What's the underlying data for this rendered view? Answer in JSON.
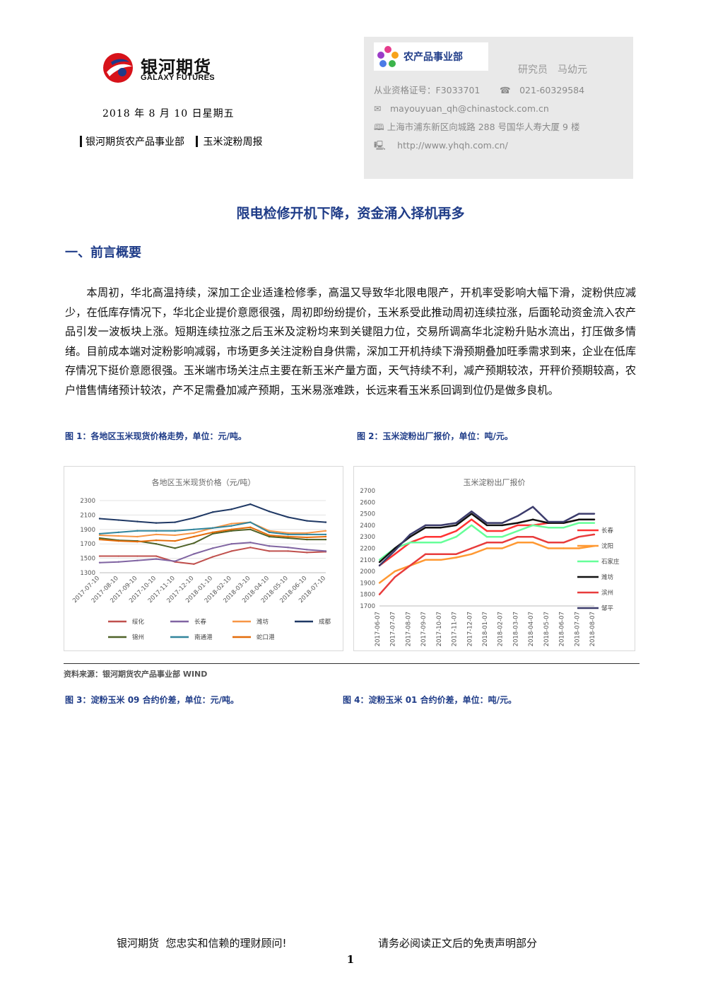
{
  "header": {
    "logo_cn": "银河期货",
    "logo_en": "GALAXY FUTURES",
    "date": "2018 年 8 月 10 日星期五",
    "dept": "银河期货农产品事业部",
    "report": "玉米淀粉周报"
  },
  "infobox": {
    "dept_label": "农产品事业部",
    "analyst": "研究员　马幼元",
    "license": "从业资格证号：F3033701",
    "phone_icon": "☎",
    "phone": "021-60329584",
    "email_icon": "✉",
    "email": "mayouyuan_qh@chinastock.com.cn",
    "address_icon": "🕮",
    "address": "上海市浦东新区向城路 288 号国华人寿大厦 9 楼",
    "web_icon": "🖳",
    "web": "http://www.yhqh.com.cn/"
  },
  "title": "限电检修开机下降，资金涌入择机再多",
  "section_title": "一、前言概要",
  "paragraph": "本周初，华北高温持续，深加工企业适逢检修季，高温又导致华北限电限产，开机率受影响大幅下滑，淀粉供应减少，在低库存情况下，华北企业提价意愿很强，周初即纷纷提价，玉米系受此推动周初连续拉涨，后面轮动资金流入农产品引发一波板块上涨。短期连续拉涨之后玉米及淀粉均来到关键阻力位，交易所调高华北淀粉升贴水流出，打压做多情绪。目前成本端对淀粉影响减弱，市场更多关注淀粉自身供需，深加工开机持续下滑预期叠加旺季需求到来，企业在低库存情况下挺价意愿很强。玉米端市场关注点主要在新玉米产量方面，天气持续不利，减产预期较浓，开秤价预期较高，农户惜售情绪预计较浓，产不足需叠加减产预期，玉米易涨难跌，长远来看玉米系回调到位仍是做多良机。",
  "figures": {
    "fig1_caption": "图 1：各地区玉米现货价格走势，单位：元/吨。",
    "fig2_caption": "图 2：玉米淀粉出厂报价，单位：吨/元。",
    "fig3_caption": "图 3：淀粉玉米 09 合约价差，单位：元/吨。",
    "fig4_caption": "图 4：淀粉玉米 01 合约价差，单位：吨/元。",
    "source": "资料来源：银河期货农产品事业部 WIND"
  },
  "chart_data": [
    {
      "type": "line",
      "title": "各地区玉米现货价格（元/吨）",
      "x": [
        "2017-07-10",
        "2017-08-10",
        "2017-09-10",
        "2017-10-10",
        "2017-11-10",
        "2017-12-10",
        "2018-01-10",
        "2018-02-10",
        "2018-03-10",
        "2018-04-10",
        "2018-05-10",
        "2018-06-10",
        "2018-07-10"
      ],
      "ylim": [
        1300,
        2300
      ],
      "yticks": [
        1300,
        1500,
        1700,
        1900,
        2100,
        2300
      ],
      "legend": "bottom",
      "series": [
        {
          "name": "绥化",
          "color": "#c0504d",
          "values": [
            1530,
            1530,
            1530,
            1530,
            1450,
            1420,
            1520,
            1600,
            1650,
            1600,
            1600,
            1580,
            1590
          ]
        },
        {
          "name": "长春",
          "color": "#8064a2",
          "values": [
            1440,
            1450,
            1470,
            1490,
            1460,
            1560,
            1640,
            1700,
            1720,
            1670,
            1650,
            1620,
            1600
          ]
        },
        {
          "name": "潍坊",
          "color": "#f79646",
          "values": [
            1820,
            1810,
            1800,
            1830,
            1820,
            1850,
            1920,
            1980,
            2000,
            1880,
            1850,
            1850,
            1880
          ]
        },
        {
          "name": "成都",
          "color": "#1f3864",
          "values": [
            2050,
            2030,
            2010,
            1990,
            2000,
            2060,
            2140,
            2180,
            2250,
            2150,
            2070,
            2020,
            2000
          ]
        },
        {
          "name": "锦州",
          "color": "#4f6228",
          "values": [
            1780,
            1750,
            1740,
            1700,
            1640,
            1710,
            1840,
            1880,
            1900,
            1800,
            1780,
            1760,
            1760
          ]
        },
        {
          "name": "南通港",
          "color": "#31859c",
          "values": [
            1840,
            1860,
            1880,
            1880,
            1880,
            1900,
            1920,
            1950,
            2000,
            1860,
            1830,
            1830,
            1830
          ]
        },
        {
          "name": "蛇口港",
          "color": "#e46c0a",
          "values": [
            1760,
            1740,
            1730,
            1750,
            1740,
            1800,
            1860,
            1900,
            1930,
            1820,
            1800,
            1790,
            1800
          ]
        }
      ]
    },
    {
      "type": "line",
      "title": "玉米淀粉出厂报价",
      "x": [
        "2017-06-07",
        "2017-07-07",
        "2017-08-07",
        "2017-09-07",
        "2017-10-07",
        "2017-11-07",
        "2017-12-07",
        "2018-01-07",
        "2018-02-07",
        "2018-03-07",
        "2018-04-07",
        "2018-05-07",
        "2018-06-07",
        "2018-07-07",
        "2018-08-07"
      ],
      "ylim": [
        1700,
        2700
      ],
      "yticks": [
        1700,
        1800,
        1900,
        2000,
        2100,
        2200,
        2300,
        2400,
        2500,
        2600,
        2700
      ],
      "legend": "right",
      "series": [
        {
          "name": "长春",
          "color": "#ff3333",
          "values": [
            2050,
            2150,
            2250,
            2300,
            2300,
            2350,
            2450,
            2350,
            2350,
            2400,
            2400,
            2420,
            2420,
            2450,
            2450
          ]
        },
        {
          "name": "沈阳",
          "color": "#ff9933",
          "values": [
            1900,
            2000,
            2050,
            2100,
            2100,
            2120,
            2150,
            2200,
            2200,
            2250,
            2250,
            2200,
            2200,
            2200,
            2220
          ]
        },
        {
          "name": "石家庄",
          "color": "#66ff99",
          "values": [
            2100,
            2200,
            2250,
            2250,
            2250,
            2300,
            2400,
            2300,
            2300,
            2350,
            2400,
            2380,
            2380,
            2420,
            2420
          ]
        },
        {
          "name": "潍坊",
          "color": "#111111",
          "values": [
            2080,
            2200,
            2300,
            2380,
            2380,
            2400,
            2500,
            2400,
            2400,
            2420,
            2450,
            2420,
            2420,
            2450,
            2450
          ]
        },
        {
          "name": "滨州",
          "color": "#e83c3c",
          "values": [
            1800,
            1950,
            2050,
            2150,
            2150,
            2150,
            2200,
            2250,
            2250,
            2300,
            2300,
            2250,
            2250,
            2300,
            2320
          ]
        },
        {
          "name": "邹平",
          "color": "#3c3c6c",
          "values": [
            2050,
            2180,
            2320,
            2400,
            2400,
            2420,
            2520,
            2420,
            2420,
            2480,
            2560,
            2430,
            2430,
            2500,
            2500
          ]
        }
      ]
    }
  ],
  "footer": {
    "left": "银河期货  您忠实和信赖的理财顾问!",
    "right": "请务必阅读正文后的免责声明部分",
    "page": "1"
  }
}
